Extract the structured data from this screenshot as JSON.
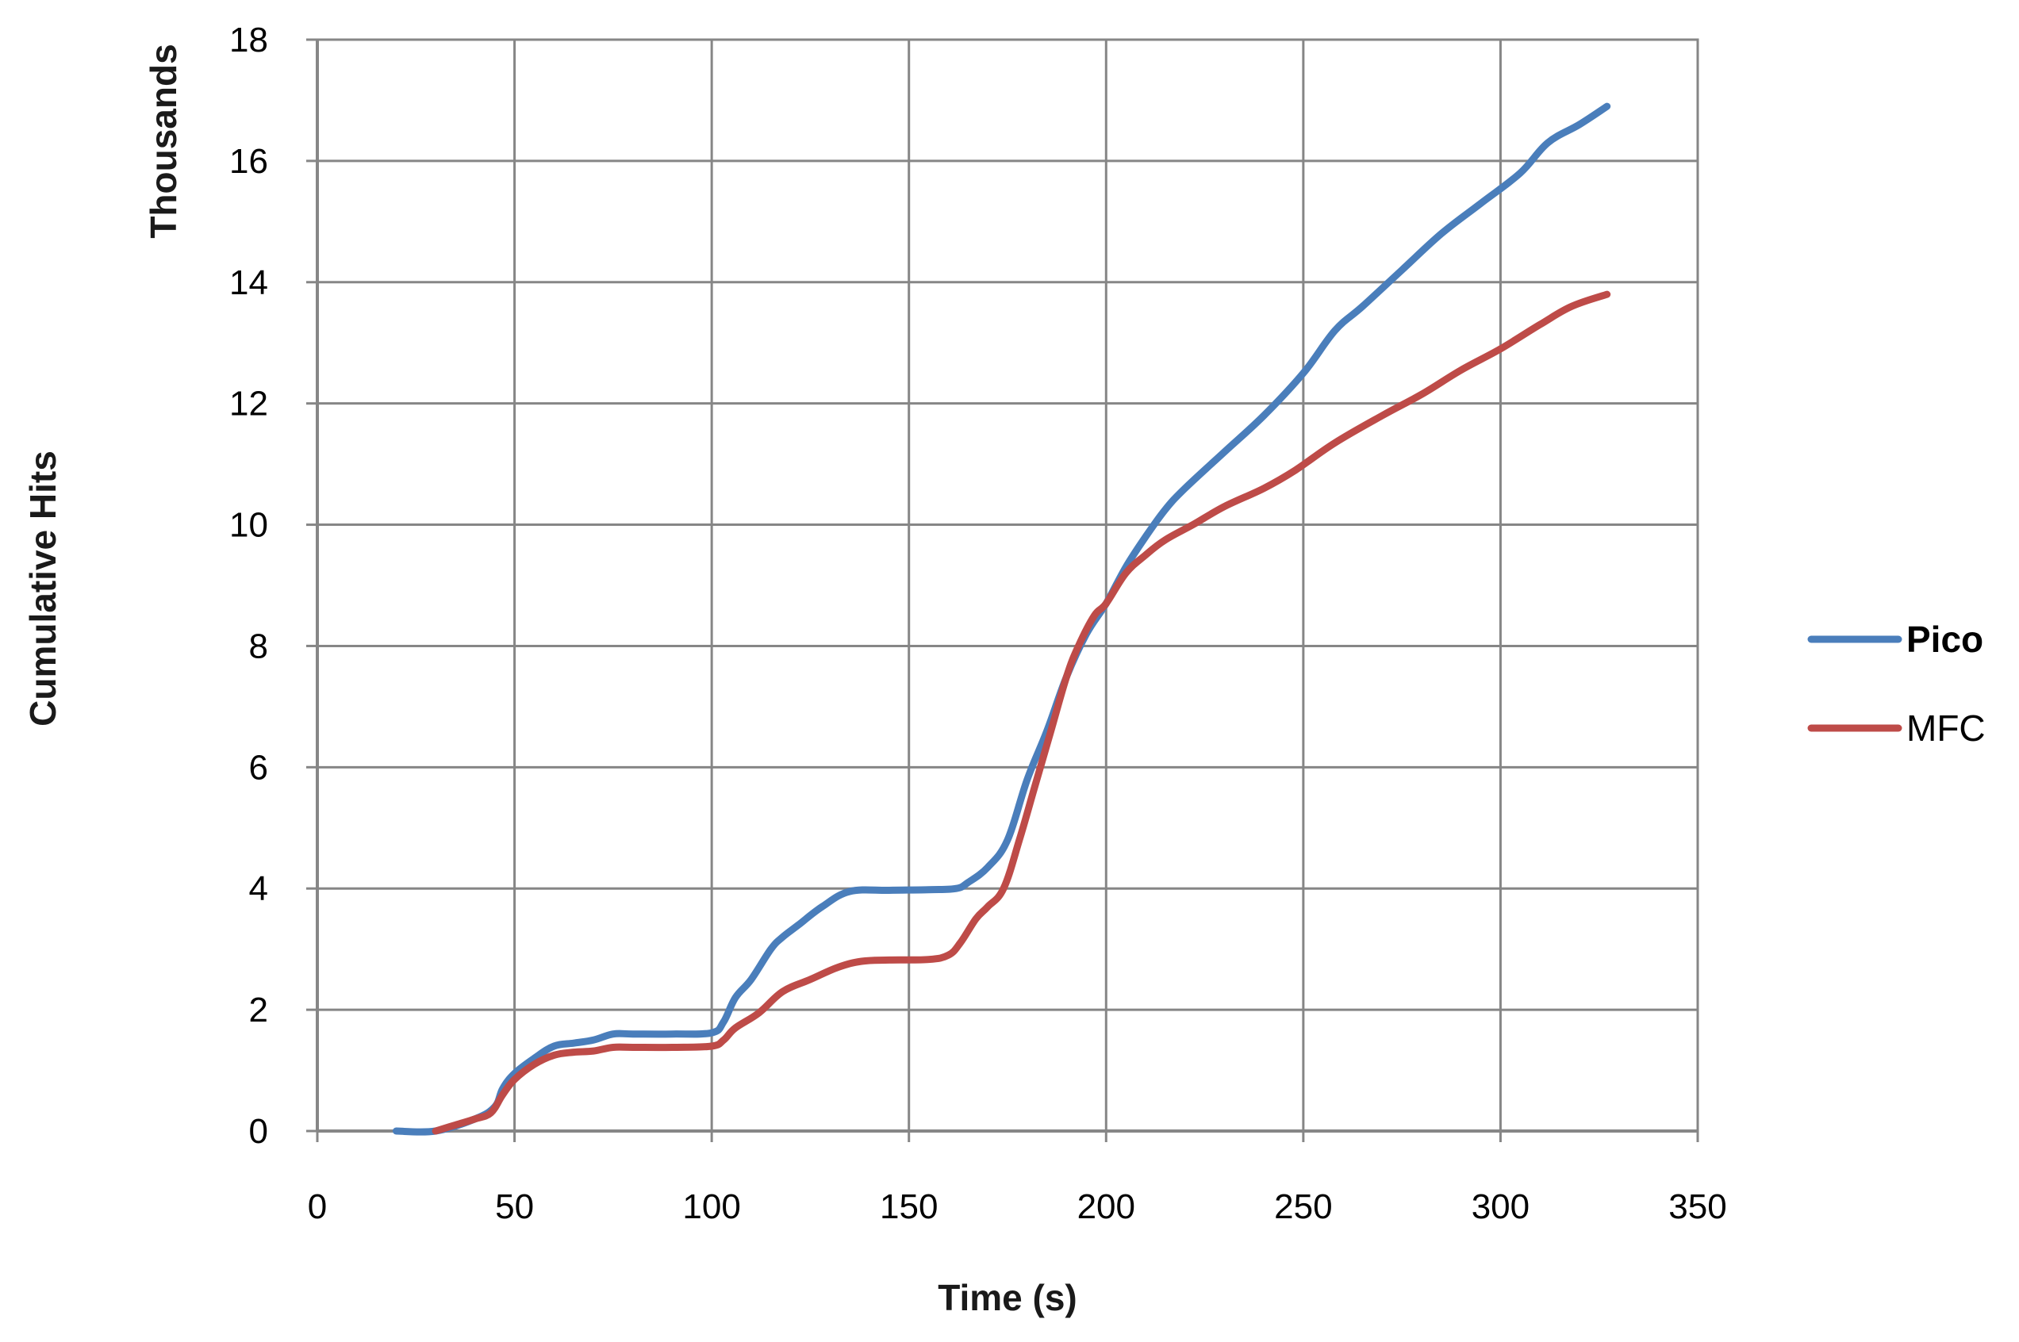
{
  "chart_data": {
    "type": "line",
    "title": "",
    "xlabel": "Time (s)",
    "ylabel": "Cumulative Hits",
    "y_unit_label": "Thousands",
    "xlim": [
      0,
      350
    ],
    "ylim": [
      0,
      18
    ],
    "x_ticks": [
      "0",
      "50",
      "100",
      "150",
      "200",
      "250",
      "300",
      "350"
    ],
    "y_ticks": [
      "0",
      "2",
      "4",
      "6",
      "8",
      "10",
      "12",
      "14",
      "16",
      "18"
    ],
    "grid": true,
    "legend_position": "right",
    "series": [
      {
        "name": "Pico",
        "color": "#4a7ebb",
        "points": [
          [
            20,
            0
          ],
          [
            30,
            0
          ],
          [
            40,
            0.2
          ],
          [
            45,
            0.4
          ],
          [
            47,
            0.7
          ],
          [
            50,
            0.95
          ],
          [
            55,
            1.2
          ],
          [
            60,
            1.4
          ],
          [
            65,
            1.45
          ],
          [
            70,
            1.5
          ],
          [
            75,
            1.6
          ],
          [
            80,
            1.6
          ],
          [
            90,
            1.6
          ],
          [
            100,
            1.62
          ],
          [
            103,
            1.8
          ],
          [
            106,
            2.2
          ],
          [
            110,
            2.5
          ],
          [
            115,
            3.0
          ],
          [
            118,
            3.2
          ],
          [
            122,
            3.4
          ],
          [
            128,
            3.7
          ],
          [
            135,
            3.95
          ],
          [
            145,
            3.97
          ],
          [
            155,
            3.98
          ],
          [
            162,
            4.0
          ],
          [
            165,
            4.1
          ],
          [
            170,
            4.35
          ],
          [
            175,
            4.8
          ],
          [
            180,
            5.8
          ],
          [
            185,
            6.6
          ],
          [
            190,
            7.5
          ],
          [
            195,
            8.2
          ],
          [
            200,
            8.7
          ],
          [
            205,
            9.3
          ],
          [
            210,
            9.8
          ],
          [
            215,
            10.25
          ],
          [
            220,
            10.6
          ],
          [
            230,
            11.2
          ],
          [
            240,
            11.8
          ],
          [
            250,
            12.5
          ],
          [
            258,
            13.2
          ],
          [
            265,
            13.6
          ],
          [
            275,
            14.2
          ],
          [
            285,
            14.8
          ],
          [
            295,
            15.3
          ],
          [
            305,
            15.8
          ],
          [
            312,
            16.3
          ],
          [
            320,
            16.6
          ],
          [
            327,
            16.9
          ]
        ]
      },
      {
        "name": "MFC",
        "color": "#be4b48",
        "points": [
          [
            30,
            0
          ],
          [
            35,
            0.1
          ],
          [
            40,
            0.2
          ],
          [
            44,
            0.3
          ],
          [
            47,
            0.6
          ],
          [
            50,
            0.85
          ],
          [
            55,
            1.1
          ],
          [
            60,
            1.25
          ],
          [
            65,
            1.3
          ],
          [
            70,
            1.32
          ],
          [
            75,
            1.38
          ],
          [
            80,
            1.38
          ],
          [
            90,
            1.38
          ],
          [
            100,
            1.4
          ],
          [
            103,
            1.5
          ],
          [
            106,
            1.7
          ],
          [
            112,
            1.95
          ],
          [
            118,
            2.3
          ],
          [
            125,
            2.5
          ],
          [
            132,
            2.7
          ],
          [
            138,
            2.8
          ],
          [
            145,
            2.82
          ],
          [
            155,
            2.83
          ],
          [
            160,
            2.9
          ],
          [
            163,
            3.1
          ],
          [
            167,
            3.5
          ],
          [
            170,
            3.7
          ],
          [
            174,
            4.0
          ],
          [
            178,
            4.8
          ],
          [
            182,
            5.7
          ],
          [
            186,
            6.6
          ],
          [
            190,
            7.5
          ],
          [
            193,
            8.0
          ],
          [
            197,
            8.5
          ],
          [
            200,
            8.7
          ],
          [
            205,
            9.2
          ],
          [
            210,
            9.5
          ],
          [
            215,
            9.75
          ],
          [
            222,
            10.0
          ],
          [
            230,
            10.3
          ],
          [
            240,
            10.6
          ],
          [
            248,
            10.9
          ],
          [
            258,
            11.35
          ],
          [
            270,
            11.8
          ],
          [
            280,
            12.15
          ],
          [
            290,
            12.55
          ],
          [
            300,
            12.9
          ],
          [
            310,
            13.3
          ],
          [
            318,
            13.6
          ],
          [
            327,
            13.8
          ]
        ]
      }
    ]
  }
}
